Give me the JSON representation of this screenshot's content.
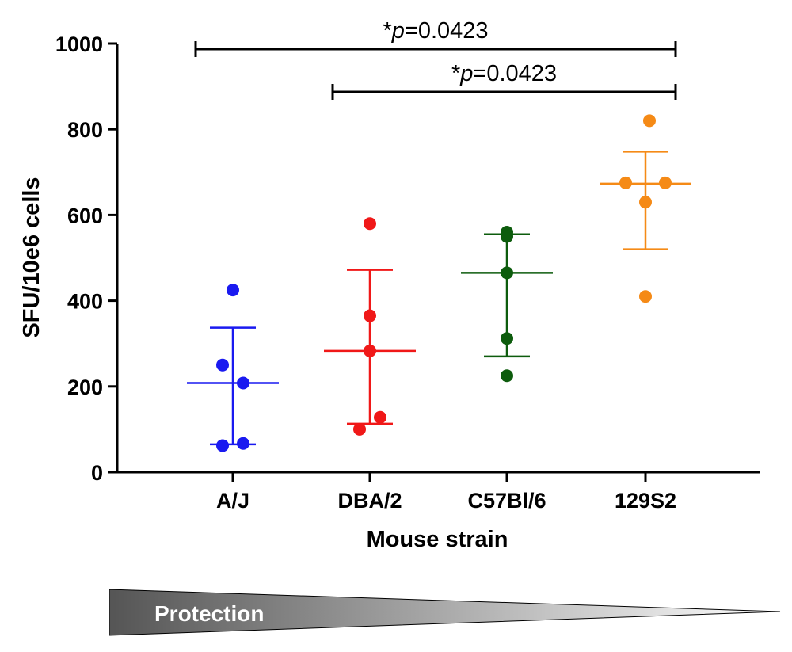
{
  "chart_data": {
    "type": "scatter",
    "ylabel": "SFU/10e6 cells",
    "xlabel": "Mouse strain",
    "ylim": [
      0,
      1000
    ],
    "yticks": [
      0,
      200,
      400,
      600,
      800,
      1000
    ],
    "categories": [
      "A/J",
      "DBA/2",
      "C57Bl/6",
      "129S2"
    ],
    "grid": false,
    "series": [
      {
        "category": "A/J",
        "color": "#1a1af0",
        "points": [
          425,
          250,
          208,
          67,
          62
        ],
        "mean": 208,
        "sd_upper": 337,
        "sd_lower": 65
      },
      {
        "category": "DBA/2",
        "color": "#f01818",
        "points": [
          580,
          365,
          283,
          128,
          100
        ],
        "mean": 283,
        "sd_upper": 472,
        "sd_lower": 113
      },
      {
        "category": "C57Bl/6",
        "color": "#0d5c0d",
        "points": [
          560,
          550,
          465,
          312,
          225
        ],
        "mean": 465,
        "sd_upper": 555,
        "sd_lower": 270
      },
      {
        "category": "129S2",
        "color": "#f58a16",
        "points": [
          820,
          675,
          675,
          630,
          410
        ],
        "mean": 673,
        "sd_upper": 748,
        "sd_lower": 520
      }
    ],
    "annotations": [
      {
        "star": "*",
        "p": "p",
        "rest": "=0.0423",
        "from": "A/J",
        "to": "129S2"
      },
      {
        "star": "*",
        "p": "p",
        "rest": "=0.0423",
        "from": "DBA/2",
        "to": "129S2"
      }
    ]
  },
  "protection_label": "Protection",
  "colors": {
    "protection_dark": "#555555",
    "protection_light": "#ffffff"
  }
}
